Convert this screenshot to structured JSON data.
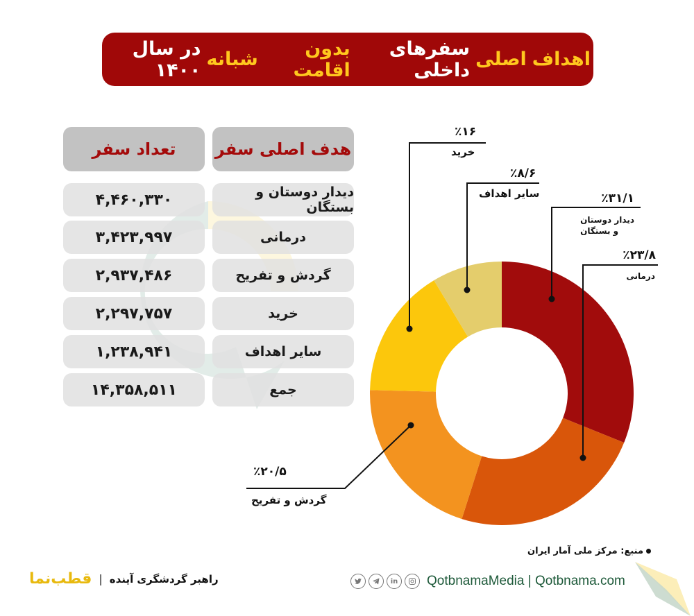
{
  "title": {
    "parts": [
      {
        "text": "اهداف",
        "highlight": true
      },
      {
        "text": "اصلی",
        "highlight": true
      },
      {
        "text": "سفرهای داخلی",
        "highlight": false
      },
      {
        "text": "بدون اقامت",
        "highlight": true
      },
      {
        "text": "شبانه",
        "highlight": true
      },
      {
        "text": "در سال ۱۴۰۰",
        "highlight": false
      }
    ]
  },
  "table": {
    "headers": {
      "goal": "هدف اصلی سفر",
      "count": "تعداد سفر"
    },
    "rows": [
      {
        "goal": "دیدار دوستان و بستگان",
        "count": "۴,۴۶۰,۳۳۰"
      },
      {
        "goal": "درمانی",
        "count": "۳,۴۲۳,۹۹۷"
      },
      {
        "goal": "گردش و تفریح",
        "count": "۲,۹۳۷,۴۸۶"
      },
      {
        "goal": "خرید",
        "count": "۲,۲۹۷,۷۵۷"
      },
      {
        "goal": "سایر اهداف",
        "count": "۱,۲۳۸,۹۴۱"
      },
      {
        "goal": "جمع",
        "count": "۱۴,۳۵۸,۵۱۱"
      }
    ]
  },
  "chart_data": {
    "type": "pie",
    "variant": "donut",
    "title": "اهداف اصلی سفرهای داخلی بدون اقامت شبانه در سال ۱۴۰۰",
    "categories": [
      "دیدار دوستان و بستگان",
      "درمانی",
      "گردش و تفریح",
      "خرید",
      "سایر اهداف"
    ],
    "values": [
      31.1,
      23.8,
      20.5,
      16.0,
      8.6
    ],
    "labels": [
      "٪۳۱/۱",
      "٪۲۳/۸",
      "٪۲۰/۵",
      "٪۱۶",
      "٪۸/۶"
    ],
    "counts": [
      4460330,
      3423997,
      2937486,
      2297757,
      1238941
    ],
    "total": 14358511,
    "colors": [
      "#a10c0c",
      "#d9560a",
      "#f3931f",
      "#fcc70c",
      "#e4cd6c"
    ],
    "legend": "none (leader-line labels)"
  },
  "chart_labels": {
    "friends": {
      "pct": "٪۳۱/۱",
      "line1": "دیدار دوستان",
      "line2": "و بستگان"
    },
    "medical": {
      "pct": "٪۲۳/۸",
      "cat": "درمانی"
    },
    "leisure": {
      "pct": "٪۲۰/۵",
      "cat": "گردش و تفریح"
    },
    "shopping": {
      "pct": "٪۱۶",
      "cat": "خرید"
    },
    "other": {
      "pct": "٪۸/۶",
      "cat": "سایر اهداف"
    }
  },
  "source": "منبع: مرکز ملی آمار ایران",
  "footer": {
    "brand": "قطب‌نما",
    "separator": "|",
    "tagline": "راهبر گردشگری آینده",
    "social": [
      "twitter-icon",
      "telegram-icon",
      "linkedin-icon",
      "instagram-icon"
    ],
    "links": "QotbnamaMedia  |  Qotbnama.com"
  }
}
